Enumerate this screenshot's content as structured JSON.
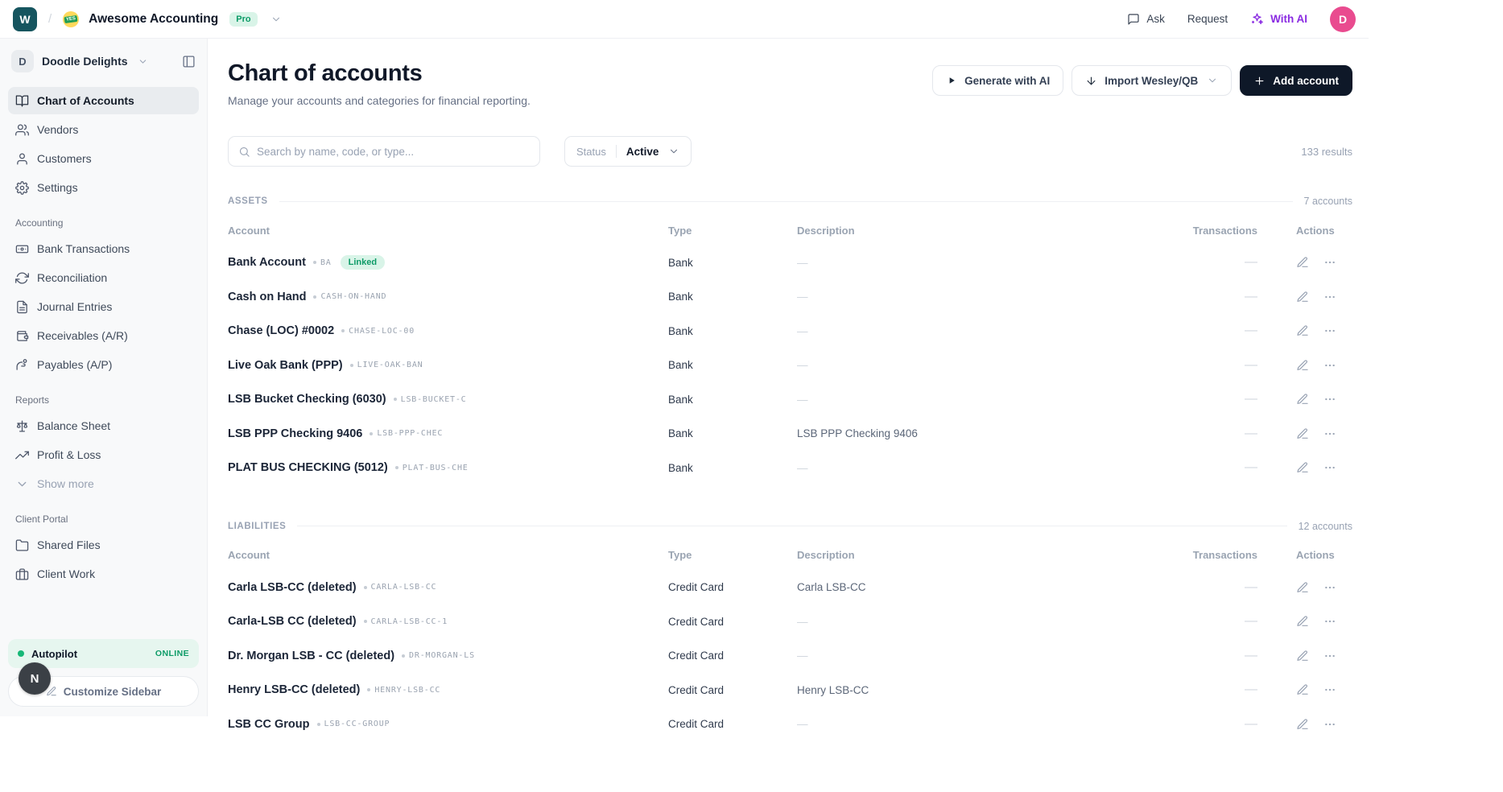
{
  "topbar": {
    "logo_initial": "W",
    "breadcrumb_separator": "/",
    "workspace_emoji_label": "YES",
    "app_title": "Awesome Accounting",
    "plan_badge": "Pro",
    "actions": {
      "ask": "Ask",
      "request": "Request",
      "with_ai": "With AI"
    },
    "avatar_initial": "D"
  },
  "sidebar": {
    "org": {
      "initial": "D",
      "name": "Doodle Delights"
    },
    "sections": [
      {
        "title": "",
        "items": [
          {
            "label": "Chart of Accounts",
            "icon": "book-open",
            "active": true
          },
          {
            "label": "Vendors",
            "icon": "users"
          },
          {
            "label": "Customers",
            "icon": "user"
          },
          {
            "label": "Settings",
            "icon": "gear"
          }
        ]
      },
      {
        "title": "Accounting",
        "items": [
          {
            "label": "Bank Transactions",
            "icon": "banknote"
          },
          {
            "label": "Reconciliation",
            "icon": "refresh"
          },
          {
            "label": "Journal Entries",
            "icon": "file-text"
          },
          {
            "label": "Receivables (A/R)",
            "icon": "wallet"
          },
          {
            "label": "Payables (A/P)",
            "icon": "hand-coins"
          }
        ]
      },
      {
        "title": "Reports",
        "items": [
          {
            "label": "Balance Sheet",
            "icon": "scale"
          },
          {
            "label": "Profit & Loss",
            "icon": "trending-up"
          },
          {
            "label": "Show more",
            "icon": "chevron-down",
            "muted": true
          }
        ]
      },
      {
        "title": "Client Portal",
        "items": [
          {
            "label": "Shared Files",
            "icon": "folder"
          },
          {
            "label": "Client Work",
            "icon": "briefcase"
          }
        ]
      }
    ],
    "autopilot": {
      "label": "Autopilot",
      "status": "ONLINE"
    },
    "customize_label": "Customize Sidebar",
    "presence_initial": "N"
  },
  "header": {
    "title": "Chart of accounts",
    "subtitle": "Manage your accounts and categories for financial reporting.",
    "buttons": {
      "generate": "Generate with AI",
      "import": "Import Wesley/QB",
      "add": "Add account"
    }
  },
  "filters": {
    "search_placeholder": "Search by name, code, or type...",
    "status_label": "Status",
    "status_value": "Active",
    "results": "133 results"
  },
  "table": {
    "columns": {
      "account": "Account",
      "type": "Type",
      "description": "Description",
      "transactions": "Transactions",
      "actions": "Actions"
    },
    "sections": [
      {
        "name": "ASSETS",
        "count": "7 accounts",
        "rows": [
          {
            "name": "Bank Account",
            "code": "BA",
            "badge": "Linked",
            "type": "Bank",
            "description": "—",
            "transactions": "—"
          },
          {
            "name": "Cash on Hand",
            "code": "CASH-ON-HAND",
            "type": "Bank",
            "description": "—",
            "transactions": "—"
          },
          {
            "name": "Chase (LOC) #0002",
            "code": "CHASE-LOC-00",
            "type": "Bank",
            "description": "—",
            "transactions": "—"
          },
          {
            "name": "Live Oak Bank (PPP)",
            "code": "LIVE-OAK-BAN",
            "type": "Bank",
            "description": "—",
            "transactions": "—"
          },
          {
            "name": "LSB Bucket Checking (6030)",
            "code": "LSB-BUCKET-C",
            "type": "Bank",
            "description": "—",
            "transactions": "—"
          },
          {
            "name": "LSB PPP Checking 9406",
            "code": "LSB-PPP-CHEC",
            "type": "Bank",
            "description": "LSB PPP Checking 9406",
            "transactions": "—"
          },
          {
            "name": "PLAT BUS CHECKING (5012)",
            "code": "PLAT-BUS-CHE",
            "type": "Bank",
            "description": "—",
            "transactions": "—"
          }
        ]
      },
      {
        "name": "LIABILITIES",
        "count": "12 accounts",
        "rows": [
          {
            "name": "Carla LSB-CC (deleted)",
            "code": "CARLA-LSB-CC",
            "type": "Credit Card",
            "description": "Carla LSB-CC",
            "transactions": "—"
          },
          {
            "name": "Carla-LSB CC (deleted)",
            "code": "CARLA-LSB-CC-1",
            "type": "Credit Card",
            "description": "—",
            "transactions": "—"
          },
          {
            "name": "Dr. Morgan LSB - CC (deleted)",
            "code": "DR-MORGAN-LS",
            "type": "Credit Card",
            "description": "—",
            "transactions": "—"
          },
          {
            "name": "Henry LSB-CC (deleted)",
            "code": "HENRY-LSB-CC",
            "type": "Credit Card",
            "description": "Henry LSB-CC",
            "transactions": "—"
          },
          {
            "name": "LSB CC Group",
            "code": "LSB-CC-GROUP",
            "type": "Credit Card",
            "description": "—",
            "transactions": "—"
          }
        ]
      }
    ]
  },
  "colors": {
    "accent_green": "#0d9b67",
    "green_bg": "#d9f4e8",
    "with_ai_purple": "#8a2be2",
    "avatar_pink": "#e94b8f",
    "logo_teal": "#16555f",
    "dark_button": "#0e1828"
  }
}
